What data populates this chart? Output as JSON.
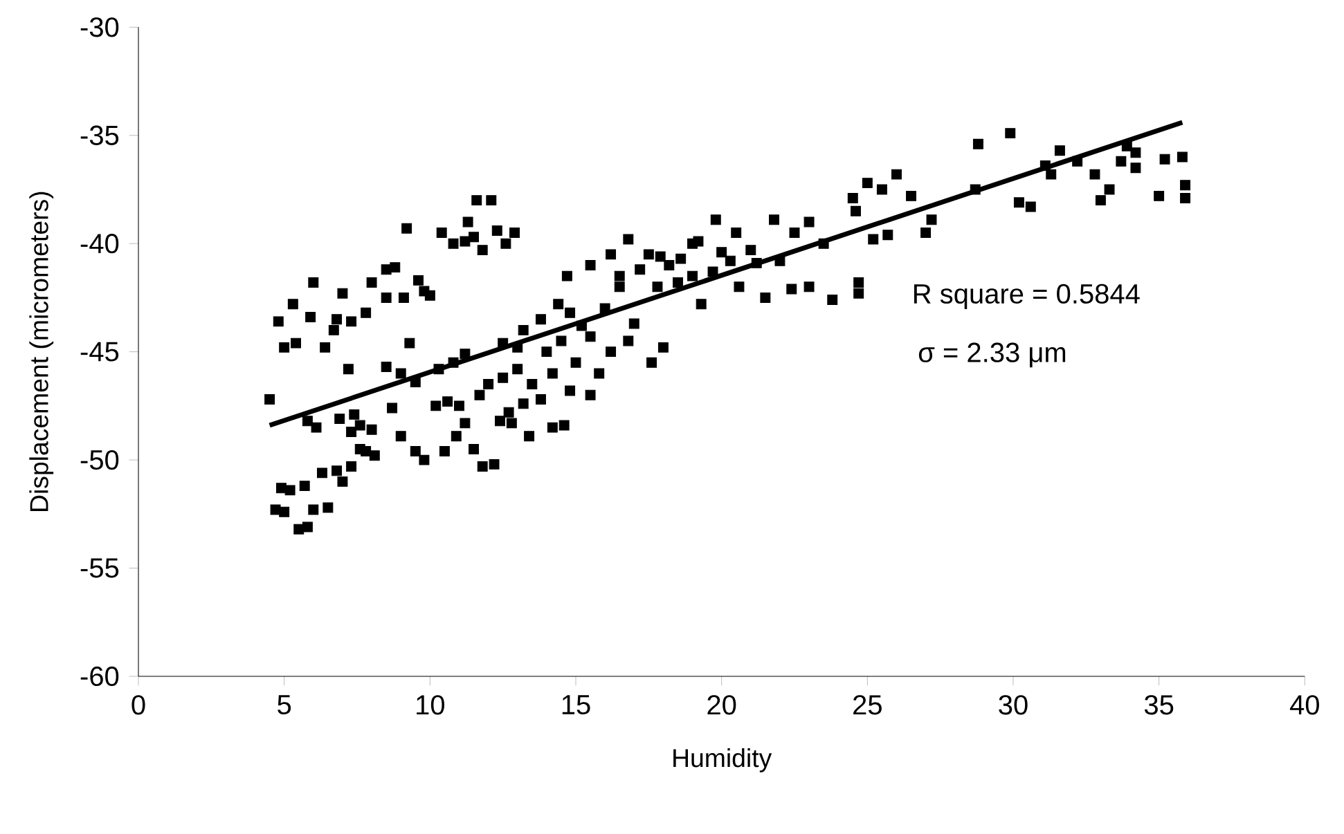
{
  "chart_data": {
    "type": "scatter",
    "xlabel": "Humidity",
    "ylabel": "Displacement (micrometers)",
    "xlim": [
      0,
      40
    ],
    "xticks": [
      0,
      5,
      10,
      15,
      20,
      25,
      30,
      35,
      40
    ],
    "ylim": [
      -60,
      -30
    ],
    "yticks": [
      -60,
      -55,
      -50,
      -45,
      -40,
      -35,
      -30
    ],
    "marker": "square",
    "annotations": [
      "R square = 0.5844",
      "σ = 2.33 μm"
    ],
    "series": [
      {
        "color": "#000000",
        "x": [
          4.7,
          5.0,
          5.2,
          5.5,
          5.8,
          6.0,
          6.3,
          5.7,
          6.8,
          7.0,
          7.3,
          6.5,
          4.9,
          5.8,
          6.1,
          6.9,
          7.3,
          7.6,
          8.0,
          7.8,
          7.4,
          7.6,
          8.1,
          4.8,
          5.0,
          5.3,
          5.4,
          5.9,
          6.0,
          6.4,
          6.7,
          7.0,
          6.8,
          7.3,
          7.8,
          8.0,
          8.5,
          8.5,
          9.2,
          8.8,
          9.1,
          9.8,
          10.0,
          9.6,
          10.4,
          10.8,
          11.2,
          11.5,
          11.8,
          11.6,
          12.1,
          12.3,
          11.3,
          12.6,
          12.9,
          8.5,
          9.0,
          9.5,
          9.0,
          9.5,
          9.8,
          10.5,
          10.9,
          11.2,
          11.5,
          11.8,
          12.2,
          12.4,
          12.8,
          13.4,
          10.2,
          10.6,
          11.0,
          11.7,
          12.0,
          11.2,
          10.8,
          12.5,
          13.0,
          12.5,
          13.0,
          13.5,
          13.8,
          14.2,
          14.0,
          14.5,
          13.2,
          13.8,
          14.4,
          14.8,
          15.2,
          15.5,
          16.0,
          15.0,
          16.2,
          16.8,
          14.2,
          14.6,
          15.5,
          14.7,
          15.5,
          16.2,
          16.8,
          17.2,
          17.5,
          16.5,
          17.8,
          18.2,
          18.6,
          19.0,
          19.3,
          19.7,
          20.0,
          19.2,
          19.8,
          20.5,
          21.0,
          20.6,
          21.5,
          22.0,
          22.5,
          21.8,
          23.0,
          23.5,
          23.0,
          23.8,
          24.6,
          25.0,
          25.5,
          24.5,
          26.0,
          26.5,
          25.2,
          24.7,
          24.7,
          25.7,
          27.0,
          27.2,
          28.7,
          28.8,
          29.9,
          30.2,
          30.6,
          31.1,
          31.6,
          31.3,
          32.2,
          33.0,
          33.3,
          33.7,
          34.2,
          34.2,
          35.0,
          35.2,
          35.8,
          35.9,
          35.9,
          33.9,
          32.8,
          18.0,
          17.6,
          17.0,
          15.8,
          14.8,
          13.2,
          12.7,
          16.5,
          18.5,
          21.2,
          22.4,
          20.3,
          19.0,
          17.9,
          4.5,
          7.2,
          8.7,
          9.3,
          10.3
        ],
        "values": [
          -52.3,
          -52.4,
          -51.4,
          -53.2,
          -53.1,
          -52.3,
          -50.6,
          -51.2,
          -50.5,
          -51.0,
          -50.3,
          -52.2,
          -51.3,
          -48.2,
          -48.5,
          -48.1,
          -48.7,
          -48.4,
          -48.6,
          -49.6,
          -47.9,
          -49.5,
          -49.8,
          -43.6,
          -44.8,
          -42.8,
          -44.6,
          -43.4,
          -41.8,
          -44.8,
          -44.0,
          -42.3,
          -43.5,
          -43.6,
          -43.2,
          -41.8,
          -42.5,
          -41.2,
          -39.3,
          -41.1,
          -42.5,
          -42.2,
          -42.4,
          -41.7,
          -39.5,
          -40.0,
          -39.9,
          -39.7,
          -40.3,
          -38.0,
          -38.0,
          -39.4,
          -39.0,
          -40.0,
          -39.5,
          -45.7,
          -46.0,
          -46.4,
          -48.9,
          -49.6,
          -50.0,
          -49.6,
          -48.9,
          -48.3,
          -49.5,
          -50.3,
          -50.2,
          -48.2,
          -48.3,
          -48.9,
          -47.5,
          -47.3,
          -47.5,
          -47.0,
          -46.5,
          -45.1,
          -45.5,
          -44.6,
          -44.8,
          -46.2,
          -45.8,
          -46.5,
          -47.2,
          -46.0,
          -45.0,
          -44.5,
          -44.0,
          -43.5,
          -42.8,
          -43.2,
          -43.8,
          -44.3,
          -43.0,
          -45.5,
          -45.0,
          -44.5,
          -48.5,
          -48.4,
          -47.0,
          -41.5,
          -41.0,
          -40.5,
          -39.8,
          -41.2,
          -40.5,
          -42.0,
          -42.0,
          -41.0,
          -40.7,
          -41.5,
          -42.8,
          -41.3,
          -40.4,
          -39.9,
          -38.9,
          -39.5,
          -40.3,
          -42.0,
          -42.5,
          -40.8,
          -39.5,
          -38.9,
          -39.0,
          -40.0,
          -42.0,
          -42.6,
          -38.5,
          -37.2,
          -37.5,
          -37.9,
          -36.8,
          -37.8,
          -39.8,
          -41.8,
          -42.3,
          -39.6,
          -39.5,
          -38.9,
          -37.5,
          -35.4,
          -34.9,
          -38.1,
          -38.3,
          -36.4,
          -35.7,
          -36.8,
          -36.2,
          -38.0,
          -37.5,
          -36.2,
          -35.8,
          -36.5,
          -37.8,
          -36.1,
          -36.0,
          -37.3,
          -37.9,
          -35.5,
          -36.8,
          -44.8,
          -45.5,
          -43.7,
          -46.0,
          -46.8,
          -47.4,
          -47.8,
          -41.5,
          -41.8,
          -40.9,
          -42.1,
          -40.8,
          -40.0,
          -40.6,
          -47.2,
          -45.8,
          -47.6,
          -44.6,
          -45.8
        ]
      },
      {
        "type": "line",
        "color": "#000000",
        "marker": "none",
        "line_style": "solid",
        "x": [
          4.5,
          35.8
        ],
        "values": [
          -48.4,
          -34.4
        ]
      }
    ]
  }
}
